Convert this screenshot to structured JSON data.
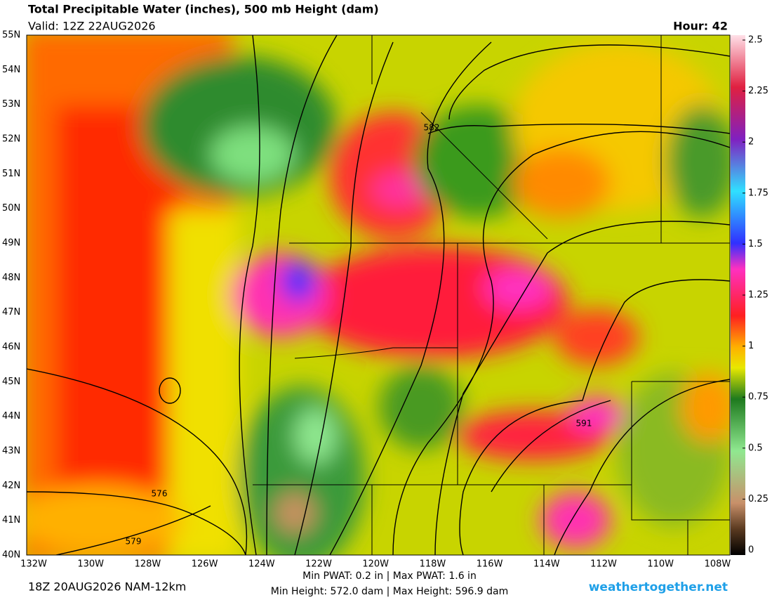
{
  "header": {
    "title": "Total Precipitable Water (inches), 500 mb Height (dam)",
    "valid": "Valid: 12Z 22AUG2026",
    "hour": "Hour: 42"
  },
  "map": {
    "lat_labels": [
      "55N",
      "54N",
      "53N",
      "52N",
      "51N",
      "50N",
      "49N",
      "48N",
      "47N",
      "46N",
      "45N",
      "44N",
      "43N",
      "42N",
      "41N",
      "40N"
    ],
    "lon_labels": [
      "132W",
      "130W",
      "128W",
      "126W",
      "124W",
      "122W",
      "120W",
      "118W",
      "116W",
      "114W",
      "112W",
      "110W",
      "108W"
    ],
    "contour_labels": [
      "582",
      "591",
      "576",
      "579"
    ]
  },
  "colorbar": {
    "lim": [
      0,
      2.5
    ],
    "ticks": [
      0,
      0.25,
      0.5,
      0.75,
      1,
      1.25,
      1.5,
      1.75,
      2,
      2.25,
      2.5
    ]
  },
  "footer": {
    "run": "18Z 20AUG2026 NAM-12km",
    "pwat": "Min PWAT:   0.2 in | Max PWAT:   1.6 in",
    "height": "Min Height: 572.0 dam | Max Height: 596.9 dam",
    "site": "weathertogether.net"
  }
}
